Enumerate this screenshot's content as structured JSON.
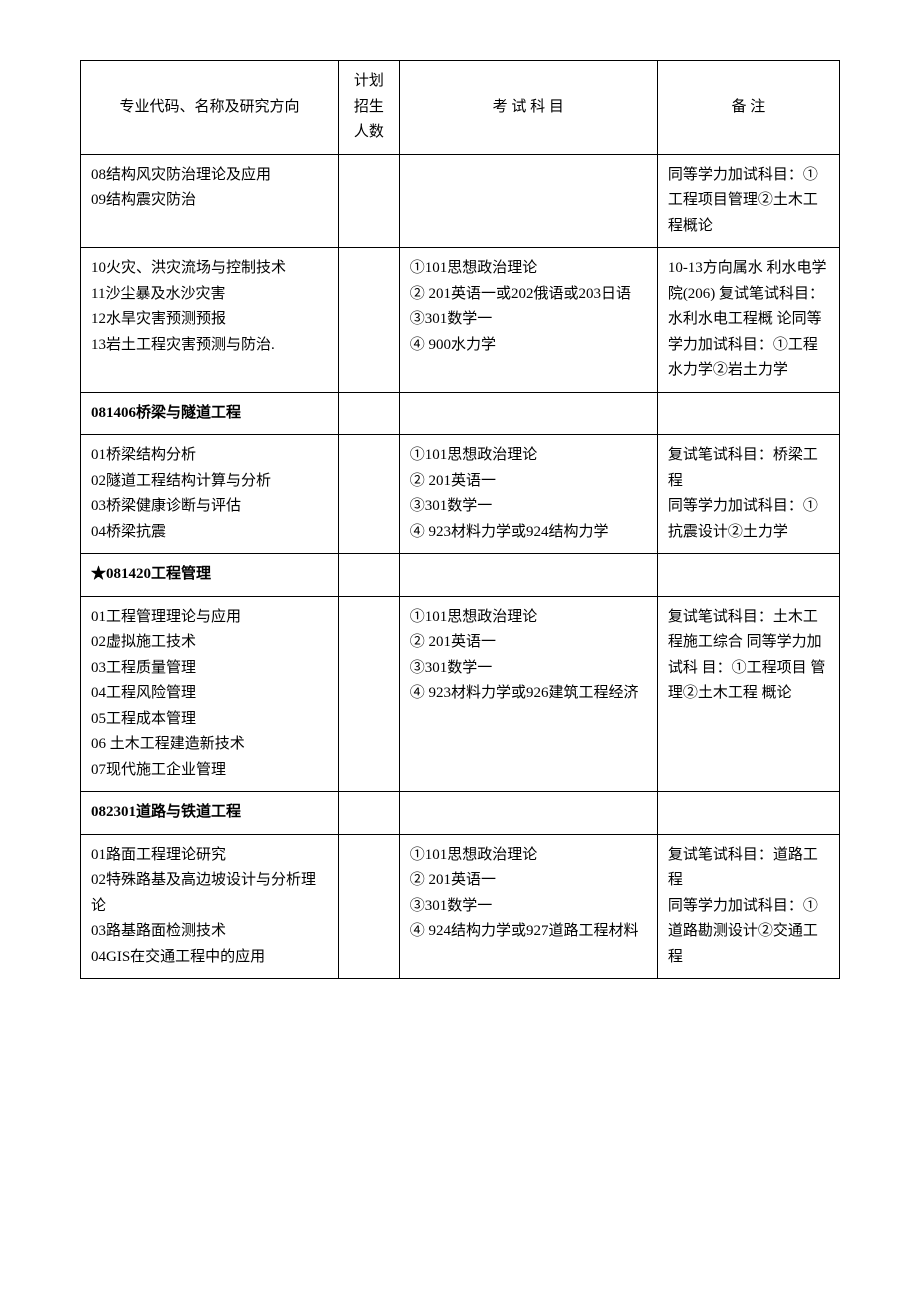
{
  "headers": {
    "direction": "专业代码、名称及研究方向",
    "plan": "计划招生人数",
    "exam": "考 试 科 目",
    "note": "备   注"
  },
  "rows": [
    {
      "direction": "08结构风灾防治理论及应用\n09结构震灾防治",
      "plan": "",
      "exam": "",
      "note": "同等学力加试科目：①工程项目管理②土木工程概论"
    },
    {
      "direction": "10火灾、洪灾流场与控制技术\n11沙尘暴及水沙灾害\n12水旱灾害预测预报\n13岩土工程灾害预测与防治.",
      "plan": "",
      "exam": "①101思想政治理论\n②   201英语一或202俄语或203日语\n③301数学一\n④   900水力学",
      "note": "10-13方向属水   利水电学院(206)   复试笔试科目：   水利水电工程概   论同等学力加试科目：①工程水力学②岩土力学"
    },
    {
      "section": true,
      "direction": "081406桥梁与隧道工程"
    },
    {
      "direction": "01桥梁结构分析\n02隧道工程结构计算与分析\n03桥梁健康诊断与评估\n04桥梁抗震",
      "plan": "",
      "exam": "①101思想政治理论\n②   201英语一\n③301数学一\n④   923材料力学或924结构力学",
      "note": "复试笔试科目：桥梁工程\n同等学力加试科目：①抗震设计②土力学"
    },
    {
      "section": true,
      "direction": "★081420工程管理"
    },
    {
      "direction": "01工程管理理论与应用\n02虚拟施工技术\n03工程质量管理\n04工程风险管理\n05工程成本管理\n06 土木工程建造新技术\n07现代施工企业管理",
      "plan": "",
      "exam": "①101思想政治理论\n②   201英语一\n③301数学一\n④   923材料力学或926建筑工程经济",
      "note": "复试笔试科目：土木工程施工综合   同等学力加试科   目：①工程项目   管理②土木工程 概论"
    },
    {
      "section": true,
      "direction": "082301道路与铁道工程"
    },
    {
      "direction": "01路面工程理论研究\n02特殊路基及高边坡设计与分析理论\n03路基路面检测技术\n04GIS在交通工程中的应用",
      "plan": "",
      "exam": "①101思想政治理论\n②   201英语一\n③301数学一\n④   924结构力学或927道路工程材料",
      "note": "复试笔试科目：道路工程\n同等学力加试科目：①道路勘测设计②交通工程"
    }
  ]
}
